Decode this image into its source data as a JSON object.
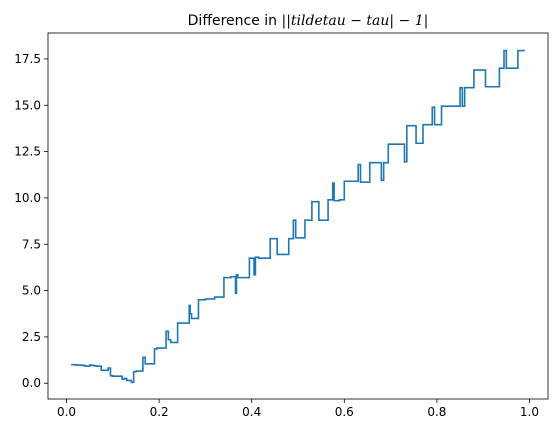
{
  "chart_data": {
    "type": "line",
    "title_prefix": "Difference in ",
    "title_math": "||tildetau − tau| − 1|",
    "xlabel": "",
    "ylabel": "",
    "xlim": [
      -0.04,
      1.04
    ],
    "ylim": [
      -0.85,
      18.9
    ],
    "xticks": [
      0.0,
      0.2,
      0.4,
      0.6,
      0.8,
      1.0
    ],
    "xtick_labels": [
      "0.0",
      "0.2",
      "0.4",
      "0.6",
      "0.8",
      "1.0"
    ],
    "yticks": [
      0.0,
      2.5,
      5.0,
      7.5,
      10.0,
      12.5,
      15.0,
      17.5
    ],
    "ytick_labels": [
      "0.0",
      "2.5",
      "5.0",
      "7.5",
      "10.0",
      "12.5",
      "15.0",
      "17.5"
    ],
    "grid": false,
    "line_color": "#1f77b4",
    "step": "post",
    "series": [
      {
        "x": [
          0.01,
          0.02,
          0.035,
          0.04,
          0.05,
          0.055,
          0.06,
          0.065,
          0.075,
          0.09,
          0.095,
          0.1,
          0.12,
          0.125,
          0.13,
          0.14,
          0.145,
          0.15,
          0.165,
          0.17,
          0.18,
          0.19,
          0.195,
          0.215,
          0.22,
          0.225,
          0.24,
          0.265,
          0.267,
          0.27,
          0.285,
          0.3,
          0.32,
          0.34,
          0.355,
          0.365,
          0.367,
          0.37,
          0.395,
          0.405,
          0.408,
          0.415,
          0.44,
          0.445,
          0.455,
          0.48,
          0.49,
          0.495,
          0.515,
          0.53,
          0.535,
          0.545,
          0.565,
          0.575,
          0.578,
          0.59,
          0.6,
          0.62,
          0.63,
          0.635,
          0.655,
          0.675,
          0.68,
          0.685,
          0.695,
          0.715,
          0.72,
          0.73,
          0.735,
          0.75,
          0.755,
          0.77,
          0.79,
          0.795,
          0.81,
          0.82,
          0.823,
          0.825,
          0.85,
          0.855,
          0.86,
          0.88,
          0.905,
          0.908,
          0.915,
          0.935,
          0.945,
          0.95,
          0.955,
          0.975,
          0.99
        ],
        "y": [
          1.0,
          0.98,
          0.96,
          0.92,
          0.98,
          0.96,
          0.94,
          0.92,
          0.7,
          0.82,
          0.4,
          0.38,
          0.22,
          0.26,
          0.15,
          0.05,
          0.62,
          0.66,
          1.4,
          1.05,
          1.05,
          1.85,
          1.9,
          2.8,
          2.35,
          2.2,
          3.25,
          4.2,
          3.75,
          3.5,
          4.5,
          4.55,
          4.65,
          5.7,
          5.75,
          4.85,
          5.85,
          5.7,
          6.75,
          5.85,
          6.8,
          6.75,
          7.8,
          7.8,
          6.95,
          7.8,
          8.8,
          7.85,
          8.8,
          9.8,
          9.8,
          8.8,
          9.9,
          10.8,
          9.85,
          9.9,
          10.9,
          10.9,
          11.8,
          10.85,
          11.9,
          11.9,
          10.95,
          11.9,
          12.9,
          12.9,
          12.9,
          11.95,
          13.9,
          13.9,
          12.95,
          13.95,
          14.9,
          13.95,
          14.95,
          14.95,
          14.95,
          14.95,
          15.95,
          14.95,
          15.95,
          16.9,
          16.0,
          16.0,
          16.0,
          17.0,
          17.95,
          17.0,
          17.0,
          17.95,
          17.95
        ]
      }
    ]
  }
}
